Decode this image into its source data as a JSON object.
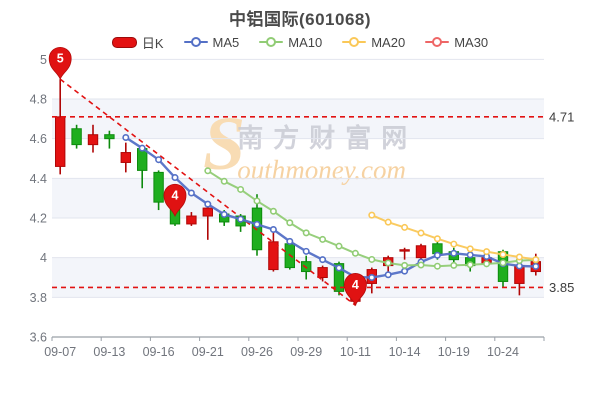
{
  "title": "中铝国际(601068)",
  "legend": {
    "items": [
      {
        "id": "dayk",
        "label": "日K",
        "color": "#e31212",
        "icon": "candlestick-swatch"
      },
      {
        "id": "ma5",
        "label": "MA5",
        "color": "#5470c6",
        "icon": "line-marker"
      },
      {
        "id": "ma10",
        "label": "MA10",
        "color": "#91cc75",
        "icon": "line-marker"
      },
      {
        "id": "ma20",
        "label": "MA20",
        "color": "#fac858",
        "icon": "line-marker"
      },
      {
        "id": "ma30",
        "label": "MA30",
        "color": "#ee6666",
        "icon": "line-marker"
      }
    ]
  },
  "watermark": {
    "initial": "S",
    "cn": "南方财富网",
    "en": "outhmoney.com"
  },
  "chart_data": {
    "type": "candlestick",
    "title": "中铝国际(601068)",
    "x_labels": [
      "09-07",
      "09-13",
      "09-16",
      "09-21",
      "09-26",
      "09-29",
      "10-11",
      "10-14",
      "10-19",
      "10-24"
    ],
    "x_label_interval": 3,
    "y_ticks": [
      {
        "v": 5.0,
        "label": "5"
      },
      {
        "v": 4.8,
        "label": "4.8"
      },
      {
        "v": 4.6,
        "label": "4.6"
      },
      {
        "v": 4.4,
        "label": "4.4"
      },
      {
        "v": 4.2,
        "label": "4.2"
      },
      {
        "v": 4.0,
        "label": "4"
      },
      {
        "v": 3.8,
        "label": "3.8"
      },
      {
        "v": 3.6,
        "label": "3.6"
      }
    ],
    "ylim": [
      3.6,
      4.92
    ],
    "grid": true,
    "up_color": "#e31212",
    "up_border": "#b00707",
    "down_color": "#1fae1f",
    "down_border": "#0d8a0d",
    "candle_format": [
      "open",
      "close",
      "low",
      "high"
    ],
    "candles": [
      [
        4.46,
        4.71,
        4.42,
        4.9
      ],
      [
        4.65,
        4.57,
        4.55,
        4.67
      ],
      [
        4.57,
        4.62,
        4.53,
        4.67
      ],
      [
        4.62,
        4.6,
        4.55,
        4.64
      ],
      [
        4.48,
        4.53,
        4.43,
        4.58
      ],
      [
        4.55,
        4.44,
        4.35,
        4.56
      ],
      [
        4.43,
        4.28,
        4.24,
        4.44
      ],
      [
        4.29,
        4.17,
        4.16,
        4.3
      ],
      [
        4.17,
        4.21,
        4.16,
        4.23
      ],
      [
        4.21,
        4.25,
        4.09,
        4.26
      ],
      [
        4.22,
        4.18,
        4.16,
        4.24
      ],
      [
        4.21,
        4.16,
        4.13,
        4.22
      ],
      [
        4.25,
        4.04,
        4.01,
        4.32
      ],
      [
        3.94,
        4.08,
        3.93,
        4.14
      ],
      [
        4.07,
        3.95,
        3.94,
        4.08
      ],
      [
        3.98,
        3.93,
        3.89,
        4.01
      ],
      [
        3.9,
        3.95,
        3.88,
        3.96
      ],
      [
        3.97,
        3.83,
        3.81,
        3.98
      ],
      [
        3.78,
        3.85,
        3.76,
        3.86
      ],
      [
        3.87,
        3.94,
        3.82,
        3.95
      ],
      [
        3.96,
        4.0,
        3.92,
        4.01
      ],
      [
        4.04,
        4.04,
        3.99,
        4.05
      ],
      [
        4.0,
        4.06,
        3.98,
        4.07
      ],
      [
        4.07,
        4.02,
        3.99,
        4.08
      ],
      [
        4.03,
        3.99,
        3.97,
        4.05
      ],
      [
        4.0,
        3.96,
        3.93,
        4.01
      ],
      [
        3.97,
        4.0,
        3.96,
        4.02
      ],
      [
        4.03,
        3.88,
        3.85,
        4.04
      ],
      [
        3.87,
        3.96,
        3.81,
        3.97
      ],
      [
        3.93,
        3.98,
        3.91,
        4.02
      ]
    ],
    "ma_series": [
      {
        "name": "MA5",
        "period": 5,
        "color": "#5470c6",
        "width": 2.4
      },
      {
        "name": "MA10",
        "period": 10,
        "color": "#91cc75",
        "width": 2
      },
      {
        "name": "MA20",
        "period": 20,
        "color": "#fac858",
        "width": 2
      },
      {
        "name": "MA30",
        "period": 30,
        "color": "#ee6666",
        "width": 2
      }
    ],
    "reference_lines": [
      {
        "value": 4.71,
        "label": "4.71"
      },
      {
        "value": 3.85,
        "label": "3.85"
      }
    ],
    "trend_line": {
      "from_index": 0,
      "from_value": 4.9,
      "to_index": 18,
      "to_value": 3.76
    },
    "balloon_markers": [
      {
        "text": "5",
        "index": 0,
        "value": 4.9
      },
      {
        "text": "4",
        "index": 7,
        "value": 4.21
      },
      {
        "text": "4",
        "index": 18,
        "value": 3.76
      }
    ],
    "marker_color": "#e01212",
    "refline_color": "#e21212",
    "axis_text_color": "#71757d",
    "grid_line_color": "#e2e5ee",
    "axis_line_color": "#9aa0a8"
  }
}
